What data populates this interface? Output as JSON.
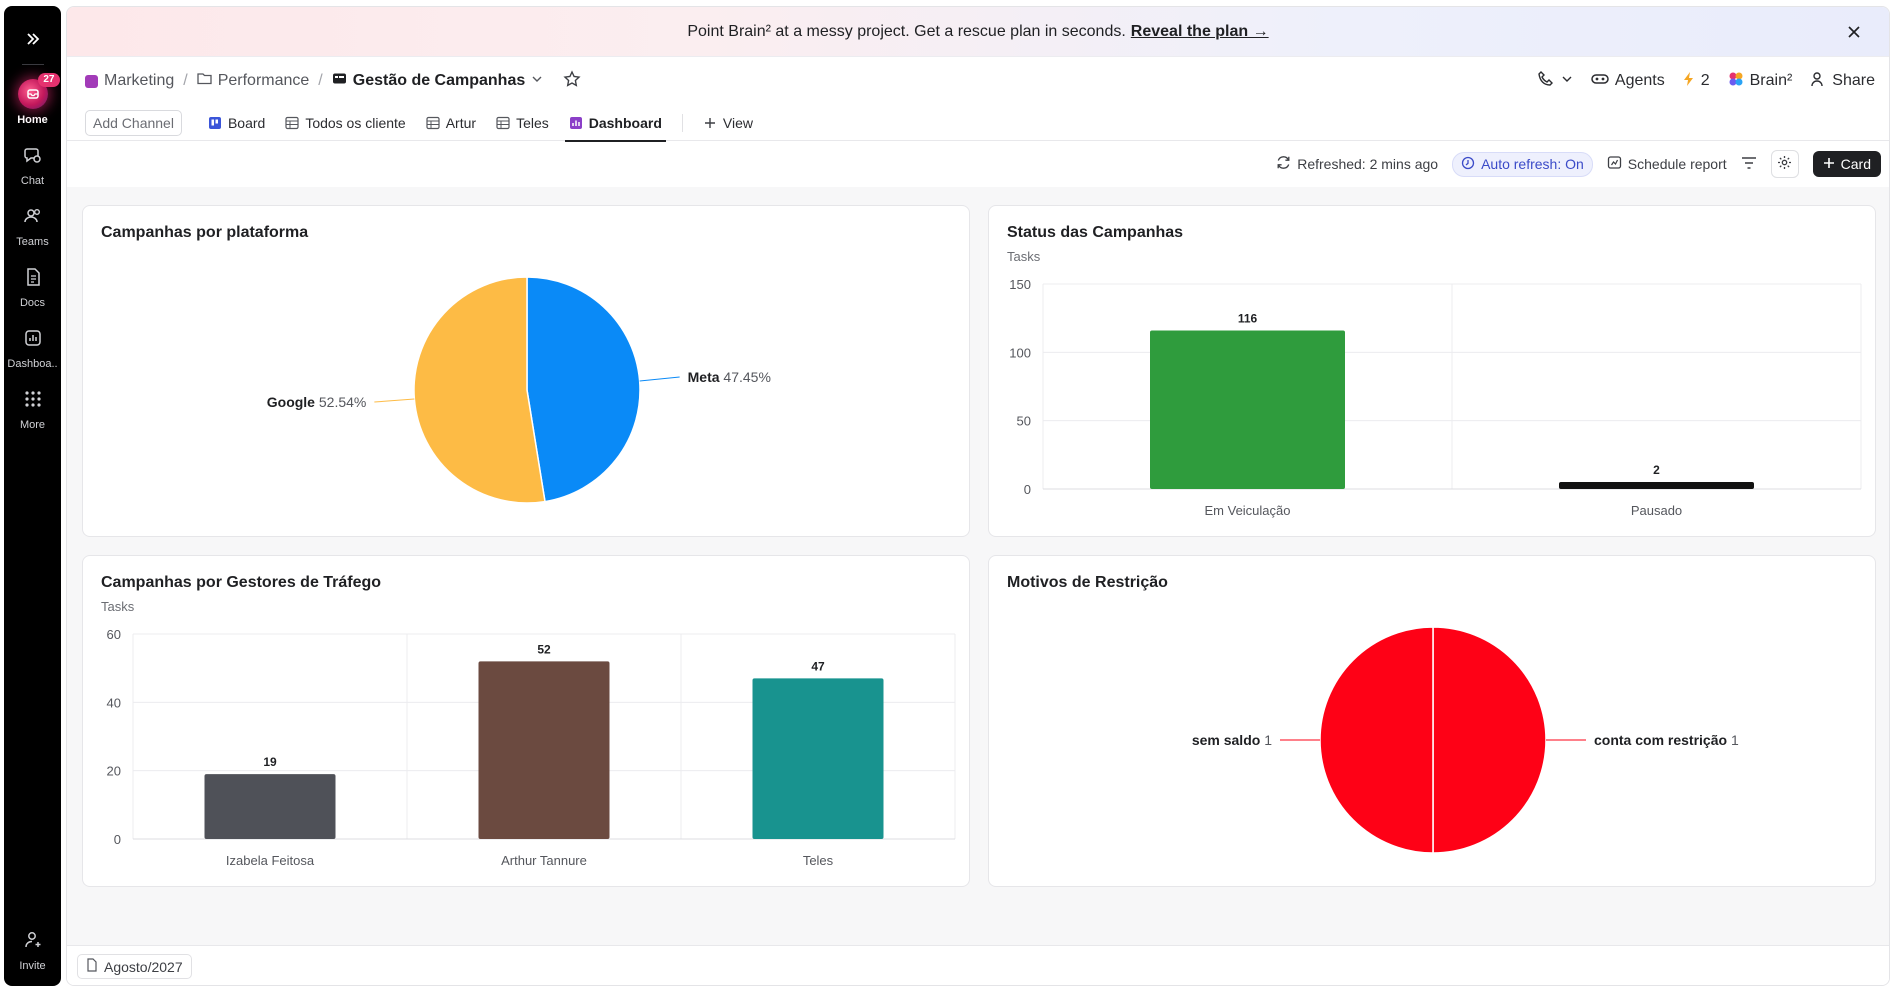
{
  "rail": {
    "items": [
      {
        "label": "Home",
        "icon": "home-icon",
        "badge": "27"
      },
      {
        "label": "Chat",
        "icon": "chat-icon"
      },
      {
        "label": "Teams",
        "icon": "teams-icon"
      },
      {
        "label": "Docs",
        "icon": "docs-icon"
      },
      {
        "label": "Dashboa..",
        "icon": "dashboard-icon"
      },
      {
        "label": "More",
        "icon": "grid-icon"
      }
    ],
    "invite": "Invite"
  },
  "banner": {
    "text": "Point Brain² at a messy project. Get a rescue plan in seconds.",
    "link": "Reveal the plan →"
  },
  "breadcrumb": {
    "space": "Marketing",
    "folder": "Performance",
    "list": "Gestão de Campanhas"
  },
  "header_right": {
    "agents": "Agents",
    "automations_count": "2",
    "brain": "Brain²",
    "share": "Share"
  },
  "tabs": {
    "add_channel": "Add Channel",
    "items": [
      "Board",
      "Todos os cliente",
      "Artur",
      "Teles",
      "Dashboard"
    ],
    "view": "View"
  },
  "toolbar": {
    "refreshed": "Refreshed: 2 mins ago",
    "auto_refresh": "Auto refresh: On",
    "schedule": "Schedule report",
    "card": "Card"
  },
  "footer": {
    "sheet": "Agosto/2027"
  },
  "colors": {
    "google": "#FDBB45",
    "meta": "#0A8AF7",
    "em_veiculacao": "#2F9C3D",
    "pausado": "#111111",
    "izabela": "#4F5158",
    "arthur": "#6B4A40",
    "teles": "#18938F",
    "restricao": "#FE0116"
  },
  "chart_data": [
    {
      "type": "pie",
      "title": "Campanhas por plataforma",
      "slices": [
        {
          "label": "Meta",
          "value": 47.45,
          "display": "47.45%"
        },
        {
          "label": "Google",
          "value": 52.54,
          "display": "52.54%"
        }
      ]
    },
    {
      "type": "bar",
      "title": "Status das Campanhas",
      "subtitle": "Tasks",
      "categories": [
        "Em Veiculação",
        "Pausado"
      ],
      "values": [
        116,
        2
      ],
      "yticks": [
        0,
        50,
        100,
        150
      ],
      "ylim": [
        0,
        150
      ],
      "grid": true
    },
    {
      "type": "bar",
      "title": "Campanhas por Gestores de Tráfego",
      "subtitle": "Tasks",
      "categories": [
        "Izabela Feitosa",
        "Arthur Tannure",
        "Teles"
      ],
      "values": [
        19,
        52,
        47
      ],
      "yticks": [
        0,
        20,
        40,
        60
      ],
      "ylim": [
        0,
        60
      ],
      "grid": true
    },
    {
      "type": "pie",
      "title": "Motivos de Restrição",
      "slices": [
        {
          "label": "conta com restrição",
          "value": 1,
          "display": "1"
        },
        {
          "label": "sem saldo",
          "value": 1,
          "display": "1"
        }
      ]
    }
  ]
}
